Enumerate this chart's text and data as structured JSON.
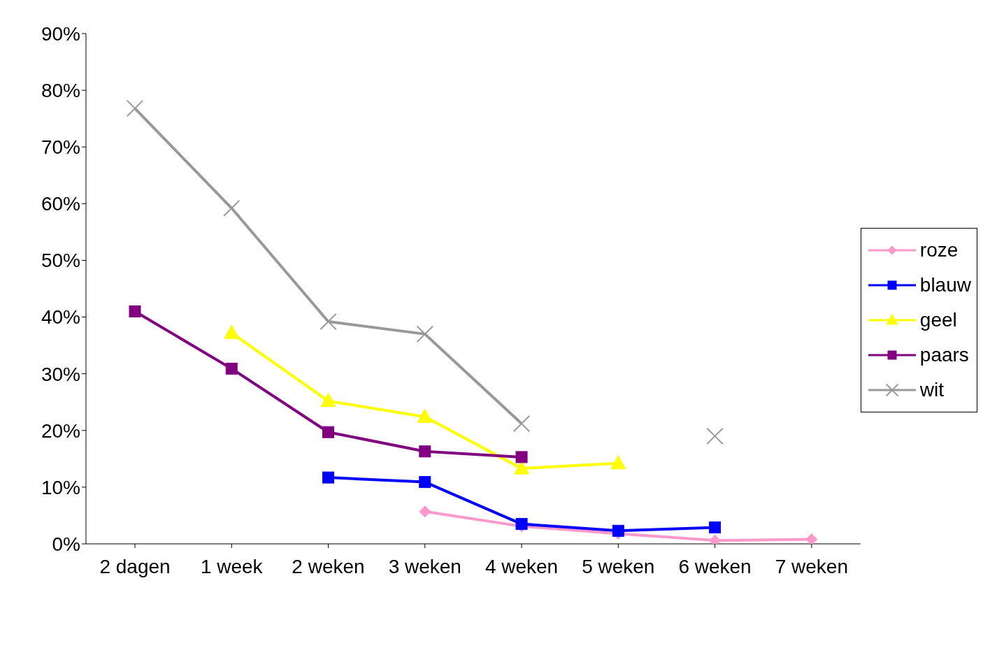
{
  "chart_data": {
    "type": "line",
    "categories": [
      "2 dagen",
      "1 week",
      "2 weken",
      "3 weken",
      "4 weken",
      "5 weken",
      "6 weken",
      "7 weken"
    ],
    "ylim": [
      0,
      90
    ],
    "yticks": [
      {
        "value": 0,
        "label": "0%"
      },
      {
        "value": 10,
        "label": "10%"
      },
      {
        "value": 20,
        "label": "20%"
      },
      {
        "value": 30,
        "label": "30%"
      },
      {
        "value": 40,
        "label": "40%"
      },
      {
        "value": 50,
        "label": "50%"
      },
      {
        "value": 60,
        "label": "60%"
      },
      {
        "value": 70,
        "label": "70%"
      },
      {
        "value": 80,
        "label": "80%"
      },
      {
        "value": 90,
        "label": "90%"
      }
    ],
    "grid": false,
    "legend": "right",
    "series": [
      {
        "name": "roze",
        "color": "#ff99cc",
        "marker": "diamond",
        "values": [
          null,
          null,
          null,
          5.7,
          3.1,
          1.8,
          0.6,
          0.8
        ]
      },
      {
        "name": "blauw",
        "color": "#0000ff",
        "marker": "square",
        "values": [
          null,
          null,
          11.7,
          10.9,
          3.5,
          2.3,
          2.9,
          null
        ]
      },
      {
        "name": "geel",
        "color": "#ffff00",
        "marker": "triangle",
        "values": [
          null,
          37.2,
          25.2,
          22.4,
          13.3,
          14.2,
          null,
          null
        ]
      },
      {
        "name": "paars",
        "color": "#800080",
        "marker": "square",
        "values": [
          41.0,
          30.9,
          19.7,
          16.3,
          15.3,
          null,
          null,
          null
        ]
      },
      {
        "name": "wit",
        "color": "#999999",
        "marker": "cross",
        "values": [
          76.8,
          59.2,
          39.2,
          37.0,
          21.2,
          null,
          19.0,
          null
        ]
      }
    ]
  }
}
